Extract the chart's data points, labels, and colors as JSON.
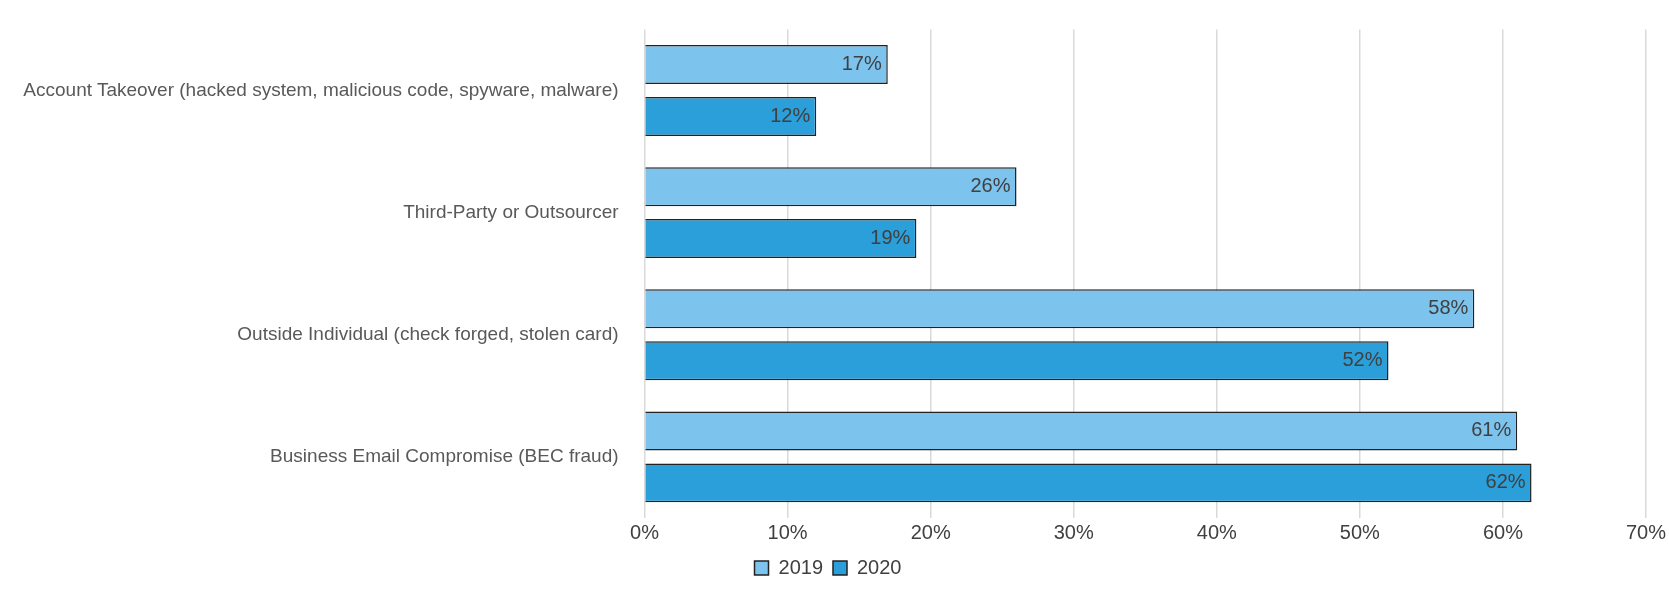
{
  "chart_data": {
    "type": "bar",
    "orientation": "horizontal",
    "categories": [
      "Account Takeover (hacked system, malicious code, spyware, malware)",
      "Third-Party or Outsourcer",
      "Outside Individual (check forged, stolen card)",
      "Business Email Compromise (BEC fraud)"
    ],
    "series": [
      {
        "name": "2019",
        "color": "#7cc3ee",
        "values": [
          17,
          26,
          58,
          61
        ],
        "value_labels": [
          "17%",
          "26%",
          "58%",
          "61%"
        ]
      },
      {
        "name": "2020",
        "color": "#2a9fd9",
        "values": [
          12,
          19,
          52,
          62
        ],
        "value_labels": [
          "12%",
          "19%",
          "52%",
          "62%"
        ]
      }
    ],
    "xlim": [
      0,
      70
    ],
    "xticks": [
      {
        "value": 0,
        "label": "0%"
      },
      {
        "value": 10,
        "label": "10%"
      },
      {
        "value": 20,
        "label": "20%"
      },
      {
        "value": 30,
        "label": "30%"
      },
      {
        "value": 40,
        "label": "40%"
      },
      {
        "value": 50,
        "label": "50%"
      },
      {
        "value": 60,
        "label": "60%"
      },
      {
        "value": 70,
        "label": "70%"
      }
    ],
    "grid": "x",
    "legend": "bottom"
  }
}
